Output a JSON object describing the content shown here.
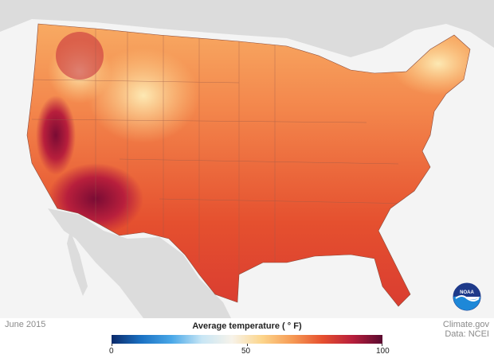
{
  "map": {
    "date": "June 2015",
    "source_line1": "Climate.gov",
    "source_line2": "Data: NCEI",
    "logo_text": "NOAA"
  },
  "legend": {
    "title": "Average temperature ( ° F)",
    "ticks": [
      "0",
      "50",
      "100"
    ],
    "range": [
      0,
      100
    ],
    "colormap": [
      "#0b2a6a",
      "#1b72c4",
      "#4aa8e8",
      "#c8e6f5",
      "#f7f3ea",
      "#fcd58b",
      "#f69b55",
      "#e6502f",
      "#b81f3c",
      "#5a0a30"
    ]
  }
}
